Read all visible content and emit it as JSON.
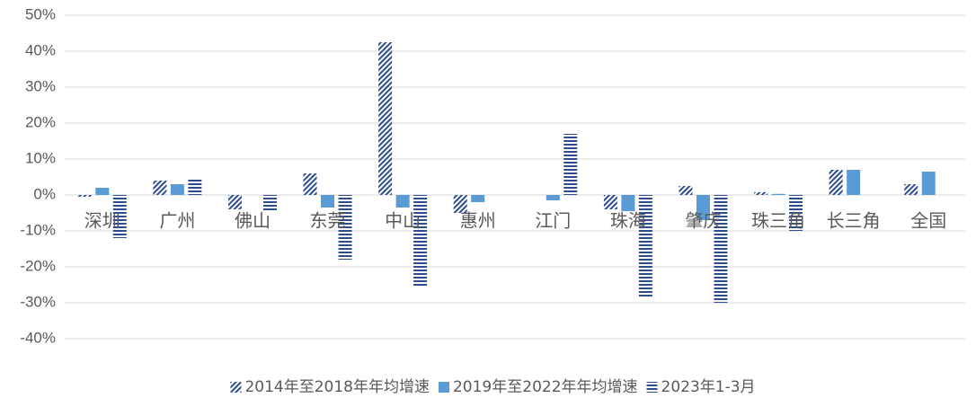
{
  "chart_data": {
    "type": "bar",
    "categories": [
      "深圳",
      "广州",
      "佛山",
      "东莞",
      "中山",
      "惠州",
      "江门",
      "珠海",
      "肇庆",
      "珠三角",
      "长三角",
      "全国"
    ],
    "series": [
      {
        "name": "2014年至2018年年均增速",
        "color": "#2e4d8f",
        "pattern": "diagonal",
        "values": [
          -0.5,
          4,
          -4,
          6,
          42.5,
          -5,
          null,
          -4,
          2.5,
          0.8,
          7,
          3
        ]
      },
      {
        "name": "2019年至2022年年均增速",
        "color": "#5b9bd5",
        "pattern": "solid",
        "values": [
          2,
          3,
          null,
          -3.5,
          -3.5,
          -2,
          -1.5,
          -4.5,
          -7,
          0.3,
          7,
          6.5
        ]
      },
      {
        "name": "2023年1-3月",
        "color": "#2e4d8f",
        "pattern": "horizontal",
        "values": [
          -12,
          4.5,
          -4.5,
          -18,
          -25.5,
          null,
          17,
          -28.5,
          -30,
          -10,
          null,
          null
        ]
      }
    ],
    "ylim": [
      -40,
      50
    ],
    "yticks": [
      {
        "value": -40,
        "label": "-40%"
      },
      {
        "value": -30,
        "label": "-30%"
      },
      {
        "value": -20,
        "label": "-20%"
      },
      {
        "value": -10,
        "label": "-10%"
      },
      {
        "value": 0,
        "label": "0%"
      },
      {
        "value": 10,
        "label": "10%"
      },
      {
        "value": 20,
        "label": "20%"
      },
      {
        "value": 30,
        "label": "30%"
      },
      {
        "value": 40,
        "label": "40%"
      },
      {
        "value": 50,
        "label": "50%"
      }
    ],
    "grid": true,
    "legend": "bottom"
  }
}
